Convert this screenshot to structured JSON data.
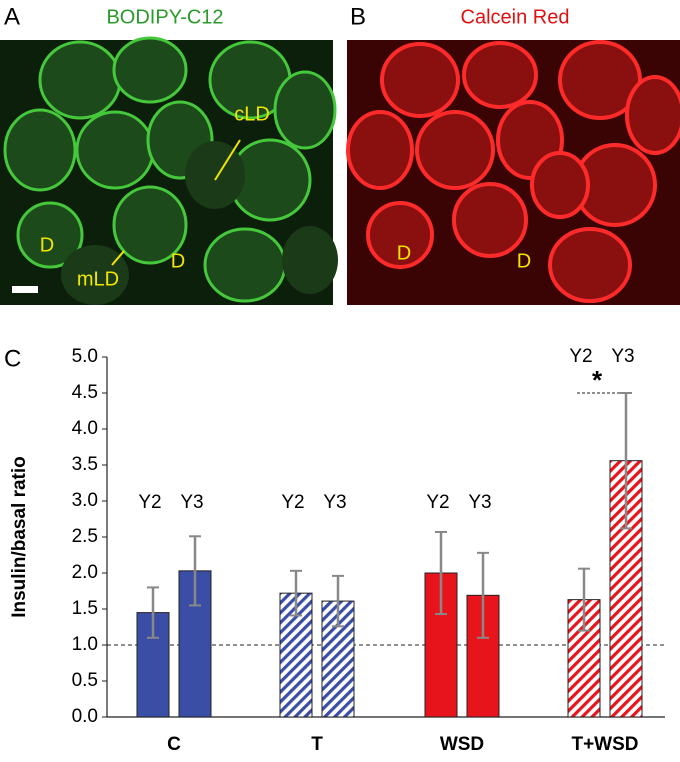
{
  "panels": [
    {
      "letter": "A",
      "title": "BODIPY-C12",
      "labels": [
        "cLD",
        "mLD",
        "D",
        "D"
      ]
    },
    {
      "letter": "B",
      "title": "Calcein Red",
      "labels": [
        "D",
        "D"
      ]
    }
  ],
  "chart_data": {
    "type": "bar",
    "letter": "C",
    "ylabel": "Insulin/basal ratio",
    "categories": [
      "C",
      "T",
      "WSD",
      "T+WSD"
    ],
    "group_colors": [
      "#3b4ea6",
      "#3b4ea6",
      "#e8141c",
      "#e8141c"
    ],
    "group_hatched": [
      false,
      true,
      false,
      true
    ],
    "series": [
      {
        "name": "Y2",
        "values": [
          1.45,
          1.72,
          2.0,
          1.63
        ],
        "errors": [
          0.35,
          0.31,
          0.57,
          0.43
        ]
      },
      {
        "name": "Y3",
        "values": [
          2.03,
          1.61,
          1.69,
          3.56
        ],
        "errors": [
          0.48,
          0.35,
          0.59,
          0.94
        ]
      }
    ],
    "reference_line": 1,
    "significance": {
      "label": "*",
      "group": 3
    },
    "ylim": [
      0,
      5
    ],
    "yticks": [
      {
        "value": 0,
        "label": "0.0"
      },
      {
        "value": 0.5,
        "label": "0.5"
      },
      {
        "value": 1,
        "label": "1.0"
      },
      {
        "value": 1.5,
        "label": "1.5"
      },
      {
        "value": 2,
        "label": "2.0"
      },
      {
        "value": 2.5,
        "label": "2.5"
      },
      {
        "value": 3,
        "label": "3.0"
      },
      {
        "value": 3.5,
        "label": "3.5"
      },
      {
        "value": 4,
        "label": "4.0"
      },
      {
        "value": 4.5,
        "label": "4.5"
      },
      {
        "value": 5,
        "label": "5.0"
      }
    ]
  }
}
